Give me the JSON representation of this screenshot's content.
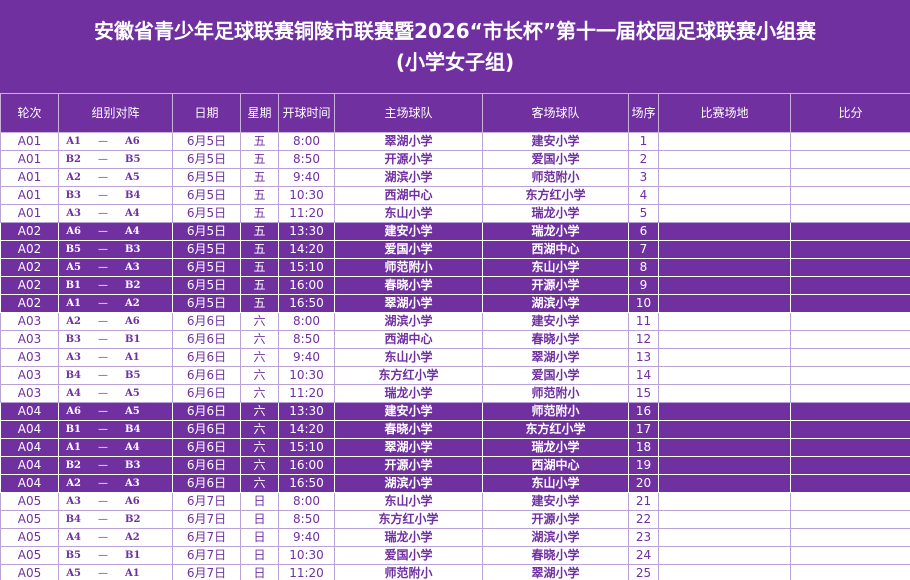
{
  "title": {
    "line1": "安徽省青少年足球联赛铜陵市联赛暨2026“市长杯”第十一届校园足球联赛小组赛",
    "line2": "(小学女子组)"
  },
  "colors": {
    "band": "#7030a0",
    "text": "#7030a0",
    "header_text": "#ffffff"
  },
  "headers": {
    "round": "轮次",
    "group": "组别对阵",
    "date": "日期",
    "weekday": "星期",
    "time": "开球时间",
    "home": "主场球队",
    "away": "客场球队",
    "order": "场序",
    "venue": "比赛场地",
    "score": "比分"
  },
  "rows": [
    {
      "round": "A01",
      "ga": "A1",
      "dash": "—",
      "gb": "A6",
      "date": "6月5日",
      "weekday": "五",
      "time": "8:00",
      "home": "翠湖小学",
      "away": "建安小学",
      "order": "1",
      "venue": "",
      "score": ""
    },
    {
      "round": "A01",
      "ga": "B2",
      "dash": "—",
      "gb": "B5",
      "date": "6月5日",
      "weekday": "五",
      "time": "8:50",
      "home": "开源小学",
      "away": "爱国小学",
      "order": "2",
      "venue": "",
      "score": ""
    },
    {
      "round": "A01",
      "ga": "A2",
      "dash": "—",
      "gb": "A5",
      "date": "6月5日",
      "weekday": "五",
      "time": "9:40",
      "home": "湖滨小学",
      "away": "师范附小",
      "order": "3",
      "venue": "",
      "score": ""
    },
    {
      "round": "A01",
      "ga": "B3",
      "dash": "—",
      "gb": "B4",
      "date": "6月5日",
      "weekday": "五",
      "time": "10:30",
      "home": "西湖中心",
      "away": "东方红小学",
      "order": "4",
      "venue": "",
      "score": ""
    },
    {
      "round": "A01",
      "ga": "A3",
      "dash": "—",
      "gb": "A4",
      "date": "6月5日",
      "weekday": "五",
      "time": "11:20",
      "home": "东山小学",
      "away": "瑞龙小学",
      "order": "5",
      "venue": "",
      "score": ""
    },
    {
      "round": "A02",
      "ga": "A6",
      "dash": "—",
      "gb": "A4",
      "date": "6月5日",
      "weekday": "五",
      "time": "13:30",
      "home": "建安小学",
      "away": "瑞龙小学",
      "order": "6",
      "venue": "",
      "score": ""
    },
    {
      "round": "A02",
      "ga": "B5",
      "dash": "—",
      "gb": "B3",
      "date": "6月5日",
      "weekday": "五",
      "time": "14:20",
      "home": "爱国小学",
      "away": "西湖中心",
      "order": "7",
      "venue": "",
      "score": ""
    },
    {
      "round": "A02",
      "ga": "A5",
      "dash": "—",
      "gb": "A3",
      "date": "6月5日",
      "weekday": "五",
      "time": "15:10",
      "home": "师范附小",
      "away": "东山小学",
      "order": "8",
      "venue": "",
      "score": ""
    },
    {
      "round": "A02",
      "ga": "B1",
      "dash": "—",
      "gb": "B2",
      "date": "6月5日",
      "weekday": "五",
      "time": "16:00",
      "home": "春晓小学",
      "away": "开源小学",
      "order": "9",
      "venue": "",
      "score": ""
    },
    {
      "round": "A02",
      "ga": "A1",
      "dash": "—",
      "gb": "A2",
      "date": "6月5日",
      "weekday": "五",
      "time": "16:50",
      "home": "翠湖小学",
      "away": "湖滨小学",
      "order": "10",
      "venue": "",
      "score": ""
    },
    {
      "round": "A03",
      "ga": "A2",
      "dash": "—",
      "gb": "A6",
      "date": "6月6日",
      "weekday": "六",
      "time": "8:00",
      "home": "湖滨小学",
      "away": "建安小学",
      "order": "11",
      "venue": "",
      "score": ""
    },
    {
      "round": "A03",
      "ga": "B3",
      "dash": "—",
      "gb": "B1",
      "date": "6月6日",
      "weekday": "六",
      "time": "8:50",
      "home": "西湖中心",
      "away": "春晓小学",
      "order": "12",
      "venue": "",
      "score": ""
    },
    {
      "round": "A03",
      "ga": "A3",
      "dash": "—",
      "gb": "A1",
      "date": "6月6日",
      "weekday": "六",
      "time": "9:40",
      "home": "东山小学",
      "away": "翠湖小学",
      "order": "13",
      "venue": "",
      "score": ""
    },
    {
      "round": "A03",
      "ga": "B4",
      "dash": "—",
      "gb": "B5",
      "date": "6月6日",
      "weekday": "六",
      "time": "10:30",
      "home": "东方红小学",
      "away": "爱国小学",
      "order": "14",
      "venue": "",
      "score": ""
    },
    {
      "round": "A03",
      "ga": "A4",
      "dash": "—",
      "gb": "A5",
      "date": "6月6日",
      "weekday": "六",
      "time": "11:20",
      "home": "瑞龙小学",
      "away": "师范附小",
      "order": "15",
      "venue": "",
      "score": ""
    },
    {
      "round": "A04",
      "ga": "A6",
      "dash": "—",
      "gb": "A5",
      "date": "6月6日",
      "weekday": "六",
      "time": "13:30",
      "home": "建安小学",
      "away": "师范附小",
      "order": "16",
      "venue": "",
      "score": ""
    },
    {
      "round": "A04",
      "ga": "B1",
      "dash": "—",
      "gb": "B4",
      "date": "6月6日",
      "weekday": "六",
      "time": "14:20",
      "home": "春晓小学",
      "away": "东方红小学",
      "order": "17",
      "venue": "",
      "score": ""
    },
    {
      "round": "A04",
      "ga": "A1",
      "dash": "—",
      "gb": "A4",
      "date": "6月6日",
      "weekday": "六",
      "time": "15:10",
      "home": "翠湖小学",
      "away": "瑞龙小学",
      "order": "18",
      "venue": "",
      "score": ""
    },
    {
      "round": "A04",
      "ga": "B2",
      "dash": "—",
      "gb": "B3",
      "date": "6月6日",
      "weekday": "六",
      "time": "16:00",
      "home": "开源小学",
      "away": "西湖中心",
      "order": "19",
      "venue": "",
      "score": ""
    },
    {
      "round": "A04",
      "ga": "A2",
      "dash": "—",
      "gb": "A3",
      "date": "6月6日",
      "weekday": "六",
      "time": "16:50",
      "home": "湖滨小学",
      "away": "东山小学",
      "order": "20",
      "venue": "",
      "score": ""
    },
    {
      "round": "A05",
      "ga": "A3",
      "dash": "—",
      "gb": "A6",
      "date": "6月7日",
      "weekday": "日",
      "time": "8:00",
      "home": "东山小学",
      "away": "建安小学",
      "order": "21",
      "venue": "",
      "score": ""
    },
    {
      "round": "A05",
      "ga": "B4",
      "dash": "—",
      "gb": "B2",
      "date": "6月7日",
      "weekday": "日",
      "time": "8:50",
      "home": "东方红小学",
      "away": "开源小学",
      "order": "22",
      "venue": "",
      "score": ""
    },
    {
      "round": "A05",
      "ga": "A4",
      "dash": "—",
      "gb": "A2",
      "date": "6月7日",
      "weekday": "日",
      "time": "9:40",
      "home": "瑞龙小学",
      "away": "湖滨小学",
      "order": "23",
      "venue": "",
      "score": ""
    },
    {
      "round": "A05",
      "ga": "B5",
      "dash": "—",
      "gb": "B1",
      "date": "6月7日",
      "weekday": "日",
      "time": "10:30",
      "home": "爱国小学",
      "away": "春晓小学",
      "order": "24",
      "venue": "",
      "score": ""
    },
    {
      "round": "A05",
      "ga": "A5",
      "dash": "—",
      "gb": "A1",
      "date": "6月7日",
      "weekday": "日",
      "time": "11:20",
      "home": "师范附小",
      "away": "翠湖小学",
      "order": "25",
      "venue": "",
      "score": ""
    }
  ]
}
